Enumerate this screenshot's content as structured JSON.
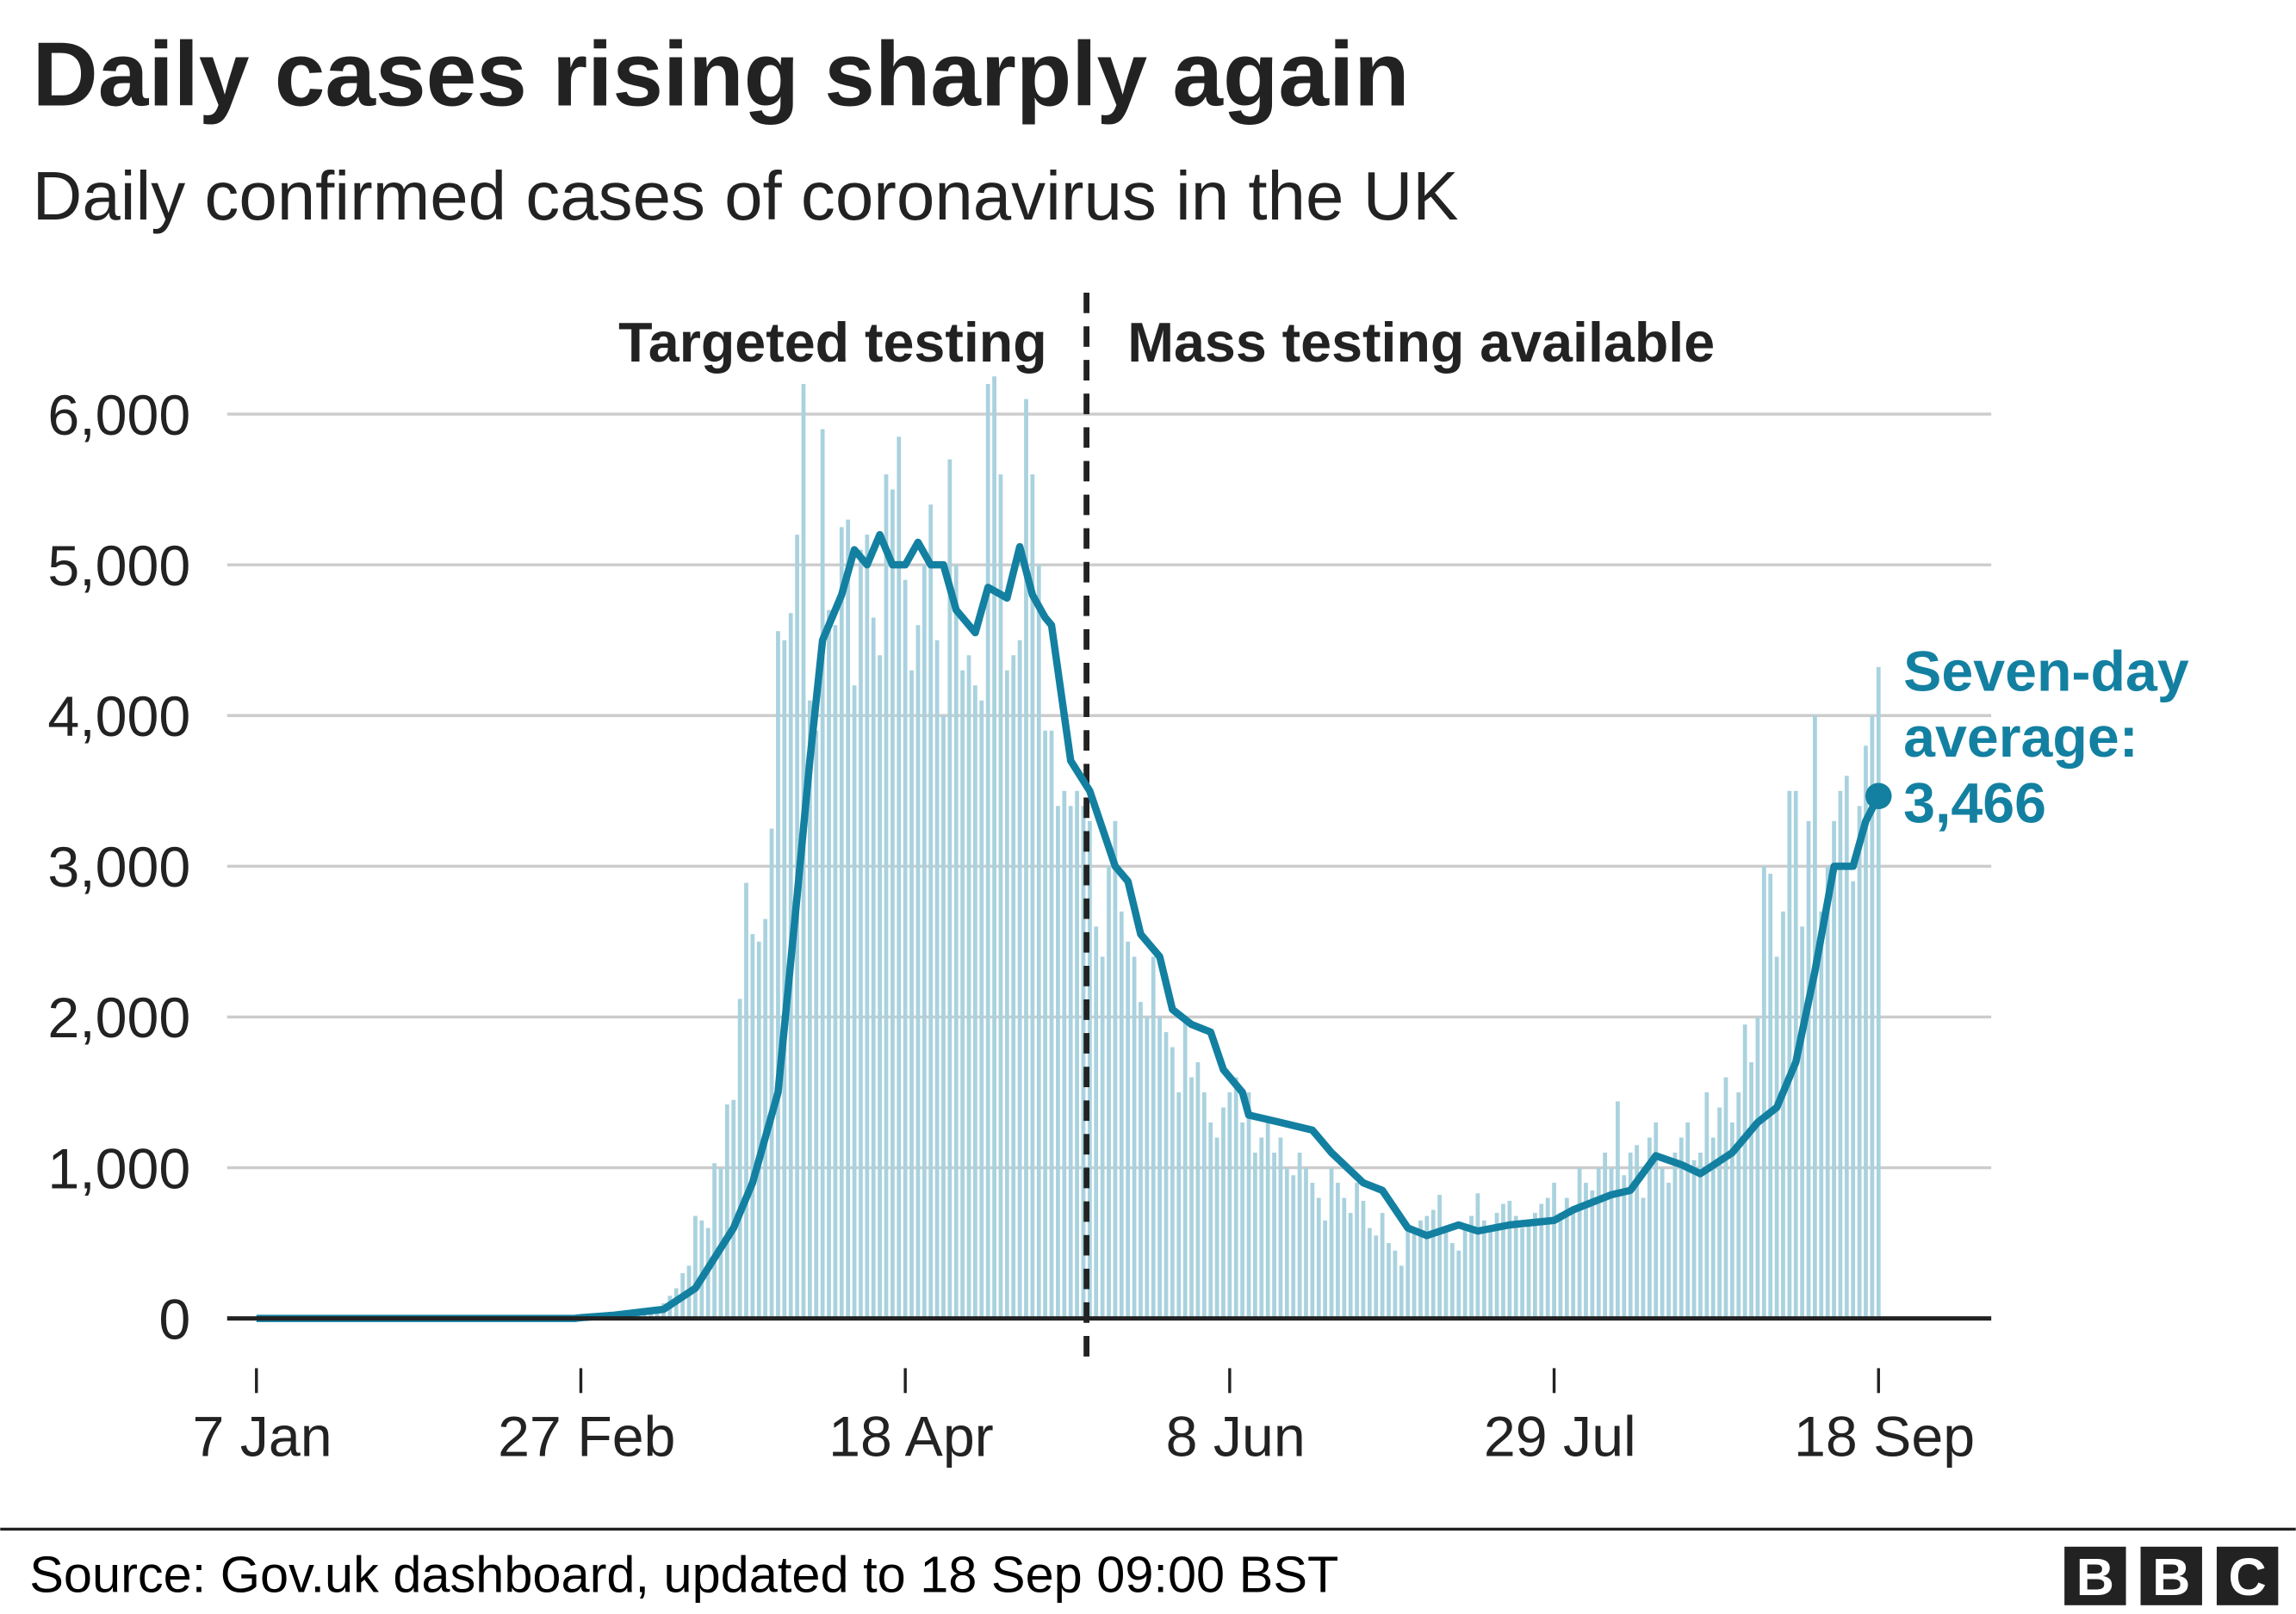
{
  "chart_data": {
    "type": "bar",
    "title": "Daily cases rising sharply again",
    "subtitle": "Daily confirmed cases of coronavirus in the UK",
    "xlabel": "",
    "ylabel": "",
    "ylim": [
      0,
      6000
    ],
    "yticks": [
      0,
      1000,
      2000,
      3000,
      4000,
      5000,
      6000
    ],
    "ytick_labels": [
      "0",
      "1,000",
      "2,000",
      "3,000",
      "4,000",
      "5,000",
      "6,000"
    ],
    "x_range_days": [
      0,
      255
    ],
    "x_origin": "7 Jan",
    "xticks_days": [
      0,
      51,
      102,
      153,
      204,
      255
    ],
    "xtick_labels": [
      "7 Jan",
      "27 Feb",
      "18 Apr",
      "8 Jun",
      "29 Jul",
      "18 Sep"
    ],
    "grid": true,
    "phase_divider_day": 131,
    "phases": [
      "Targeted testing",
      "Mass testing available"
    ],
    "daily_cases": {
      "name": "Daily confirmed cases",
      "start_day": 51,
      "values": [
        3,
        5,
        10,
        15,
        20,
        25,
        30,
        40,
        50,
        50,
        60,
        50,
        70,
        100,
        150,
        200,
        300,
        350,
        680,
        650,
        600,
        1030,
        1000,
        1420,
        1450,
        2120,
        2890,
        2550,
        2500,
        2650,
        3250,
        4560,
        4500,
        4680,
        5200,
        6200,
        4100,
        3900,
        5900,
        4700,
        4600,
        5250,
        5300,
        4200,
        5100,
        5200,
        4650,
        4400,
        5600,
        5500,
        5850,
        4900,
        4300,
        4600,
        5000,
        5400,
        4500,
        4000,
        5700,
        5000,
        4300,
        4400,
        4200,
        4100,
        6200,
        6250,
        5600,
        4300,
        4400,
        4500,
        6100,
        5600,
        5000,
        3900,
        3900,
        3400,
        3500,
        3400,
        3500,
        3400,
        3300,
        2600,
        2400,
        3000,
        3300,
        2700,
        2500,
        2400,
        2100,
        2000,
        2400,
        2000,
        1900,
        1800,
        1500,
        2000,
        1600,
        1700,
        1500,
        1300,
        1200,
        1400,
        1500,
        1600,
        1300,
        1500,
        1100,
        1200,
        1300,
        1100,
        1200,
        1000,
        950,
        1100,
        1000,
        900,
        800,
        650,
        1000,
        900,
        800,
        700,
        900,
        780,
        600,
        550,
        700,
        500,
        450,
        350,
        600,
        560,
        650,
        680,
        720,
        820,
        600,
        500,
        450,
        600,
        680,
        830,
        650,
        600,
        700,
        760,
        780,
        680,
        600,
        650,
        700,
        760,
        800,
        900,
        700,
        800,
        700,
        1000,
        900,
        850,
        1000,
        1100,
        1000,
        1440,
        950,
        1100,
        1150,
        800,
        1200,
        1300,
        1000,
        900,
        1100,
        1200,
        1300,
        1050,
        1100,
        1500,
        1200,
        1400,
        1600,
        1300,
        1500,
        1950,
        1700,
        2000,
        3000,
        2950,
        2400,
        2700,
        3500,
        3500,
        2600,
        3300,
        4000,
        2700,
        3000,
        3300,
        3500,
        3600,
        2900,
        3400,
        3800,
        4000,
        4322
      ]
    },
    "seven_day_average": {
      "name": "Seven-day average",
      "points": [
        [
          0,
          0
        ],
        [
          50,
          0
        ],
        [
          51,
          5
        ],
        [
          56,
          20
        ],
        [
          64,
          60
        ],
        [
          69,
          200
        ],
        [
          72,
          400
        ],
        [
          75,
          600
        ],
        [
          78,
          900
        ],
        [
          82,
          1500
        ],
        [
          85,
          2800
        ],
        [
          87,
          3700
        ],
        [
          89,
          4500
        ],
        [
          92,
          4800
        ],
        [
          94,
          5100
        ],
        [
          96,
          5000
        ],
        [
          98,
          5200
        ],
        [
          100,
          5000
        ],
        [
          102,
          5000
        ],
        [
          104,
          5150
        ],
        [
          106,
          5000
        ],
        [
          108,
          5000
        ],
        [
          110,
          4700
        ],
        [
          113,
          4550
        ],
        [
          115,
          4850
        ],
        [
          118,
          4780
        ],
        [
          120,
          5120
        ],
        [
          122,
          4800
        ],
        [
          124,
          4650
        ],
        [
          125,
          4600
        ],
        [
          128,
          3700
        ],
        [
          131,
          3500
        ],
        [
          135,
          3000
        ],
        [
          137,
          2900
        ],
        [
          139,
          2550
        ],
        [
          142,
          2400
        ],
        [
          144,
          2050
        ],
        [
          147,
          1950
        ],
        [
          150,
          1900
        ],
        [
          152,
          1650
        ],
        [
          155,
          1500
        ],
        [
          156,
          1350
        ],
        [
          161,
          1300
        ],
        [
          166,
          1250
        ],
        [
          169,
          1100
        ],
        [
          174,
          900
        ],
        [
          177,
          850
        ],
        [
          181,
          600
        ],
        [
          184,
          550
        ],
        [
          189,
          620
        ],
        [
          192,
          580
        ],
        [
          197,
          620
        ],
        [
          204,
          650
        ],
        [
          207,
          720
        ],
        [
          213,
          820
        ],
        [
          216,
          850
        ],
        [
          220,
          1080
        ],
        [
          224,
          1020
        ],
        [
          227,
          960
        ],
        [
          232,
          1100
        ],
        [
          236,
          1300
        ],
        [
          239,
          1400
        ],
        [
          242,
          1700
        ],
        [
          245,
          2300
        ],
        [
          248,
          3000
        ],
        [
          251,
          3000
        ],
        [
          253,
          3300
        ],
        [
          255,
          3466
        ]
      ],
      "annotation_lines": [
        "Seven-day",
        "average:",
        "3,466"
      ]
    },
    "colors": {
      "bars": "#a9d2de",
      "line": "#1380a1",
      "grid": "#cccccc",
      "axis": "#222222"
    }
  },
  "footer": {
    "source": "Source: Gov.uk dashboard, updated to 18 Sep 09:00 BST",
    "logo_letters": [
      "B",
      "B",
      "C"
    ]
  }
}
